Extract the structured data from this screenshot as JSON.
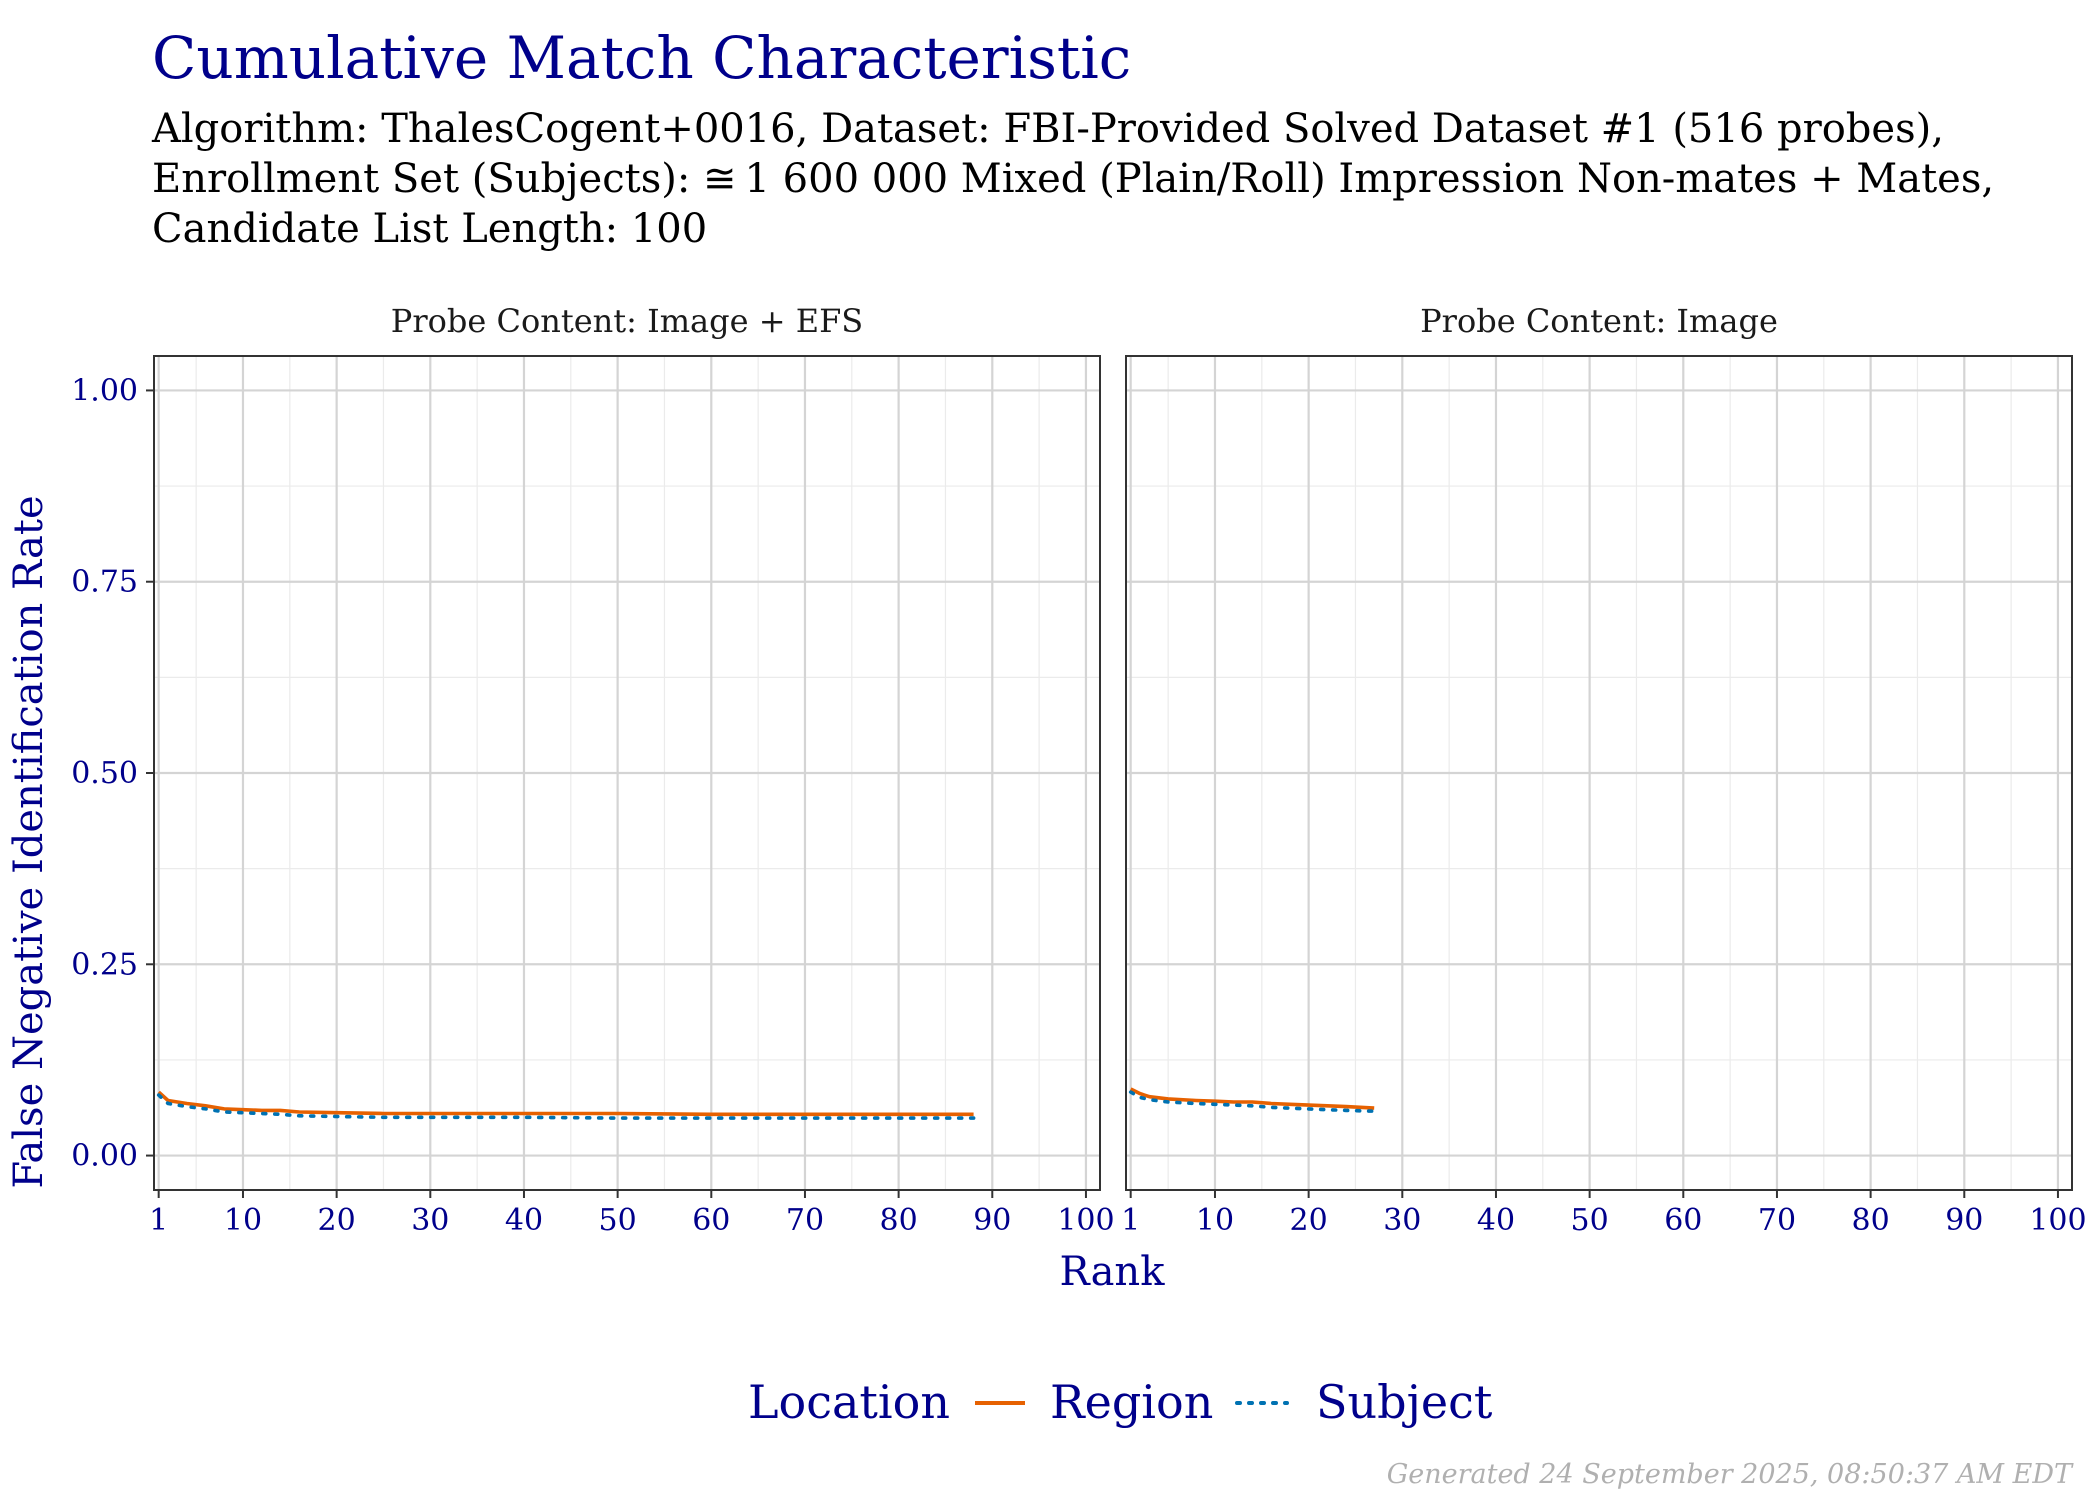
{
  "chart_data": {
    "type": "line",
    "title": "Cumulative Match Characteristic",
    "subtitle_lines": [
      "Algorithm: ThalesCogent+0016, Dataset: FBI-Provided Solved Dataset #1 (516 probes),",
      "Enrollment Set (Subjects):  ≅ 1 600 000 Mixed (Plain/Roll) Impression Non-mates + Mates,",
      "Candidate List Length: 100"
    ],
    "xlabel": "Rank",
    "ylabel": "False Negative Identification Rate",
    "xlim": [
      1,
      100
    ],
    "ylim": [
      0,
      1
    ],
    "x_ticks": [
      1,
      10,
      20,
      30,
      40,
      50,
      60,
      70,
      80,
      90,
      100
    ],
    "y_ticks": [
      0,
      0.25,
      0.5,
      0.75,
      1
    ],
    "y_tick_labels": [
      "0.00",
      "0.25",
      "0.50",
      "0.75",
      "1.00"
    ],
    "grid": true,
    "legend": {
      "position": "bottom",
      "title": "Location",
      "entries": [
        {
          "name": "Region",
          "color": "#e66101",
          "dash": "solid"
        },
        {
          "name": "Subject",
          "color": "#0072b2",
          "dash": "dotted"
        }
      ]
    },
    "panels": [
      {
        "strip": "Probe Content: Image + EFS",
        "series": [
          {
            "name": "Region",
            "x": [
              1,
              2,
              4,
              6,
              8,
              10,
              12,
              14,
              16,
              20,
              25,
              30,
              40,
              50,
              60,
              70,
              80,
              88
            ],
            "y": [
              0.083,
              0.072,
              0.068,
              0.065,
              0.061,
              0.06,
              0.059,
              0.059,
              0.057,
              0.056,
              0.055,
              0.055,
              0.055,
              0.055,
              0.054,
              0.054,
              0.054,
              0.054
            ]
          },
          {
            "name": "Subject",
            "x": [
              1,
              2,
              4,
              6,
              8,
              10,
              12,
              14,
              16,
              20,
              25,
              30,
              40,
              50,
              60,
              70,
              80,
              88
            ],
            "y": [
              0.079,
              0.068,
              0.064,
              0.061,
              0.057,
              0.056,
              0.055,
              0.054,
              0.052,
              0.051,
              0.05,
              0.05,
              0.05,
              0.049,
              0.049,
              0.049,
              0.049,
              0.049
            ]
          }
        ]
      },
      {
        "strip": "Probe Content: Image",
        "series": [
          {
            "name": "Region",
            "x": [
              1,
              2,
              3,
              5,
              8,
              10,
              12,
              14,
              16,
              18,
              20,
              22,
              24,
              27
            ],
            "y": [
              0.087,
              0.081,
              0.077,
              0.074,
              0.072,
              0.071,
              0.07,
              0.07,
              0.068,
              0.067,
              0.066,
              0.065,
              0.064,
              0.062
            ]
          },
          {
            "name": "Subject",
            "x": [
              1,
              2,
              3,
              5,
              8,
              10,
              12,
              14,
              16,
              18,
              20,
              22,
              24,
              27
            ],
            "y": [
              0.083,
              0.076,
              0.073,
              0.07,
              0.068,
              0.067,
              0.066,
              0.065,
              0.063,
              0.062,
              0.061,
              0.06,
              0.059,
              0.058
            ]
          }
        ]
      }
    ]
  },
  "footer": "Generated 24 September 2025, 08:50:37 AM EDT"
}
